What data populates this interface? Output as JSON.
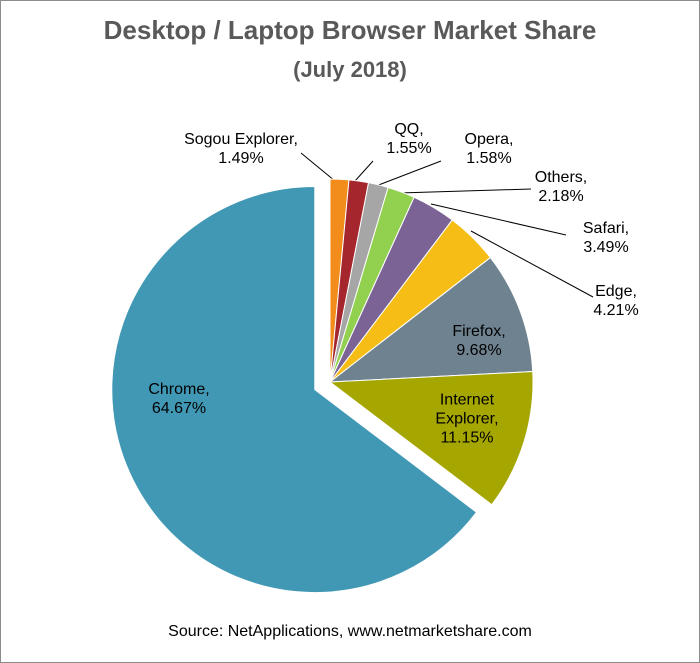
{
  "chart_data": {
    "type": "pie",
    "title": "Desktop / Laptop Browser Market Share",
    "subtitle": "(July 2018)",
    "categories": [
      "Sogou Explorer,",
      "QQ,",
      "Opera,",
      "Others,",
      "Safari,",
      "Edge,",
      "Firefox,",
      "Internet Explorer,",
      "Chrome,"
    ],
    "values": [
      1.49,
      1.55,
      1.58,
      2.18,
      3.49,
      4.21,
      9.68,
      11.15,
      64.67
    ],
    "value_labels": [
      "1.49%",
      "1.55%",
      "1.58%",
      "2.18%",
      "3.49%",
      "4.21%",
      "9.68%",
      "11.15%",
      "64.67%"
    ],
    "colors": [
      "#f28c1a",
      "#a5272d",
      "#a6a6a6",
      "#92d050",
      "#7b6396",
      "#f6bd16",
      "#6f8290",
      "#a6a600",
      "#4198b5"
    ],
    "exploded": "Chrome,",
    "source": "Source: NetApplications, www.netmarketshare.com"
  }
}
